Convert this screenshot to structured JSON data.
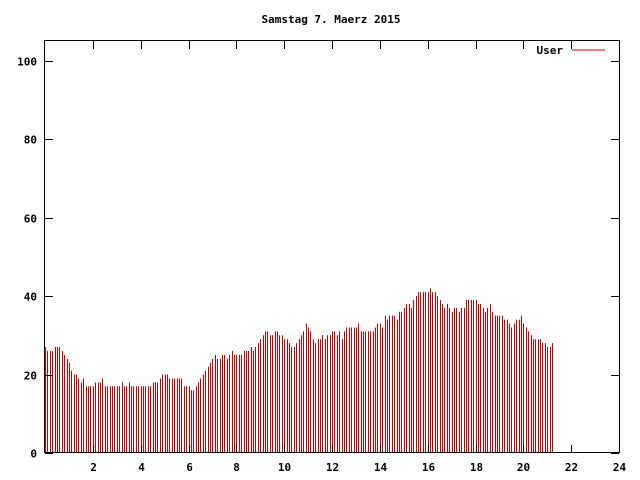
{
  "chart_data": {
    "type": "bar",
    "title": "Samstag 7. Maerz 2015",
    "xlabel": "",
    "ylabel": "",
    "xlim": [
      0,
      24
    ],
    "ylim": [
      0,
      105
    ],
    "x_ticks": [
      2,
      4,
      6,
      8,
      10,
      12,
      14,
      16,
      18,
      20,
      22,
      24
    ],
    "y_ticks": [
      0,
      20,
      40,
      60,
      80,
      100
    ],
    "grid": false,
    "legend_position": "top-right",
    "series": [
      {
        "name": "User",
        "color": "#cc0000",
        "x_start": 0,
        "x_step": 0.1,
        "values": [
          27,
          26,
          26,
          26,
          27,
          27,
          27,
          26,
          25,
          24,
          23,
          21,
          20,
          20,
          19,
          18,
          19,
          17,
          17,
          17,
          17,
          18,
          18,
          18,
          19,
          17,
          17,
          17,
          17,
          17,
          17,
          17,
          18,
          17,
          17,
          18,
          17,
          17,
          17,
          17,
          17,
          17,
          17,
          17,
          17,
          18,
          18,
          18,
          19,
          20,
          20,
          20,
          19,
          19,
          19,
          19,
          19,
          19,
          17,
          17,
          17,
          16,
          16,
          17,
          18,
          19,
          20,
          21,
          22,
          23,
          24,
          25,
          24,
          24,
          25,
          25,
          24,
          25,
          26,
          25,
          25,
          25,
          25,
          26,
          26,
          26,
          27,
          26,
          27,
          28,
          29,
          30,
          31,
          31,
          30,
          30,
          31,
          31,
          30,
          30,
          29,
          29,
          28,
          27,
          27,
          28,
          29,
          30,
          31,
          33,
          32,
          31,
          29,
          28,
          29,
          29,
          30,
          29,
          30,
          30,
          31,
          31,
          30,
          31,
          29,
          31,
          32,
          32,
          32,
          32,
          32,
          33,
          31,
          31,
          31,
          31,
          31,
          31,
          32,
          33,
          33,
          32,
          35,
          34,
          35,
          35,
          35,
          34,
          36,
          36,
          37,
          38,
          38,
          37,
          39,
          40,
          41,
          41,
          41,
          41,
          41,
          42,
          41,
          41,
          40,
          39,
          38,
          37,
          38,
          37,
          36,
          37,
          37,
          36,
          37,
          37,
          39,
          39,
          39,
          39,
          39,
          38,
          38,
          37,
          36,
          37,
          38,
          36,
          35,
          35,
          35,
          35,
          34,
          34,
          33,
          32,
          33,
          34,
          34,
          35,
          33,
          32,
          31,
          30,
          29,
          29,
          29,
          29,
          28,
          28,
          27,
          27,
          28
        ]
      }
    ]
  }
}
